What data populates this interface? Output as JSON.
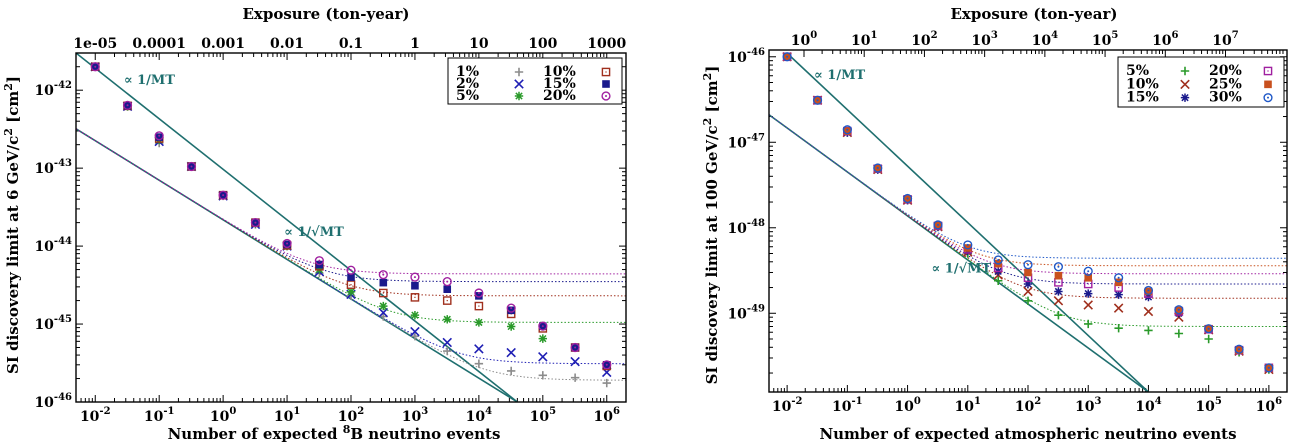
{
  "colors": {
    "1%": "#8c8c8c",
    "2%": "#1f1fb4",
    "5%": "#2a9a2a",
    "10%": "#a0301e",
    "15%": "#1a1a8c",
    "20%": "#a020a0",
    "25%": "#c8501e",
    "30%": "#1f58c8",
    "line": "#1f6f6f"
  },
  "chart_data": [
    {
      "type": "scatter",
      "title": "",
      "top_axis_label": "Exposure (ton-year)",
      "top_tick_labels": [
        "1e-05",
        "0.0001",
        "0.001",
        "0.01",
        "0.1",
        "1",
        "10",
        "100",
        "1000"
      ],
      "xlabel": "Number of expected 8B neutrino events",
      "xlabel_pre": "Number of expected ",
      "xlabel_sup": "8",
      "xlabel_post": "B neutrino events",
      "ylabel": "SI discovery limit at 6 GeV/c2 [cm2]",
      "ylabel_main": "SI discovery limit at 6 GeV/c",
      "ylabel_sup1": "2",
      "ylabel_mid": " [cm",
      "ylabel_sup2": "2",
      "ylabel_end": "]",
      "x_scale": "log",
      "y_scale": "log",
      "xlim": [
        0.005,
        2000000
      ],
      "ylim": [
        1e-46,
        3e-42
      ],
      "x_ticks": [
        0.01,
        0.1,
        1,
        10,
        100,
        1000,
        10000,
        100000,
        1000000
      ],
      "y_ticks": [
        1e-46,
        1e-45,
        1e-44,
        1e-43,
        1e-42
      ],
      "annotations": [
        {
          "text": "∝ 1/MT",
          "x": 0.028,
          "y": 1.2e-42
        },
        {
          "text": "∝ 1/√MT",
          "x": 9,
          "y": 1.35e-44
        }
      ],
      "legend_position": "top-right",
      "legend": [
        "1%",
        "2%",
        "5%",
        "10%",
        "15%",
        "20%"
      ],
      "x": [
        0.01,
        0.032,
        0.1,
        0.32,
        1,
        3.2,
        10,
        32,
        100,
        320,
        1000,
        3200,
        10000,
        32000,
        100000,
        320000,
        1000000
      ],
      "series": [
        {
          "name": "1%",
          "marker": "plus",
          "values": [
            2e-42,
            6.2e-43,
            2.1e-43,
            1.05e-43,
            4.4e-44,
            1.9e-44,
            1e-44,
            4.5e-45,
            2.3e-45,
            1.25e-45,
            7e-46,
            4.5e-46,
            3.1e-46,
            2.5e-46,
            2.2e-46,
            2.05e-46,
            1.75e-46
          ],
          "plateau": 1.9e-46
        },
        {
          "name": "2%",
          "marker": "x",
          "values": [
            2e-42,
            6.2e-43,
            2.2e-43,
            1.05e-43,
            4.4e-44,
            1.9e-44,
            1e-44,
            4.7e-45,
            2.4e-45,
            1.4e-45,
            8e-46,
            5.8e-46,
            4.8e-46,
            4.3e-46,
            3.8e-46,
            3.3e-46,
            2.4e-46
          ],
          "plateau": 3.1e-46
        },
        {
          "name": "5%",
          "marker": "star",
          "values": [
            2e-42,
            6.2e-43,
            2.3e-43,
            1.05e-43,
            4.5e-44,
            1.95e-44,
            1e-44,
            5e-45,
            2.6e-45,
            1.7e-45,
            1.3e-45,
            1.15e-45,
            1.05e-45,
            9.3e-46,
            6.5e-46,
            5e-46,
            3e-46
          ],
          "plateau": 1.05e-45
        },
        {
          "name": "10%",
          "marker": "square-open",
          "values": [
            2e-42,
            6.3e-43,
            2.4e-43,
            1.05e-43,
            4.5e-44,
            2e-44,
            1.02e-44,
            5.5e-45,
            3.2e-45,
            2.5e-45,
            2.2e-45,
            2e-45,
            1.7e-45,
            1.35e-45,
            8.8e-46,
            5e-46,
            2.9e-46
          ],
          "plateau": 2.3e-45
        },
        {
          "name": "15%",
          "marker": "square-filled",
          "values": [
            2e-42,
            6.3e-43,
            2.5e-43,
            1.05e-43,
            4.5e-44,
            2e-44,
            1.05e-44,
            5.8e-45,
            4e-45,
            3.4e-45,
            3.1e-45,
            2.8e-45,
            2.3e-45,
            1.5e-45,
            9.4e-46,
            5e-46,
            3e-46
          ],
          "plateau": 3.5e-45
        },
        {
          "name": "20%",
          "marker": "circle-dot",
          "values": [
            2e-42,
            6.4e-43,
            2.6e-43,
            1.05e-43,
            4.5e-44,
            2e-44,
            1.08e-44,
            6.5e-45,
            4.9e-45,
            4.3e-45,
            4e-45,
            3.5e-45,
            2.5e-45,
            1.6e-45,
            9.4e-46,
            5e-46,
            3e-46
          ],
          "plateau": 4.4e-45
        }
      ],
      "lines": [
        {
          "label": "1/MT",
          "points": [
            [
              0.005,
              3e-42
            ],
            [
              40000,
              1e-46
            ]
          ]
        },
        {
          "label": "1/sqrt(MT)",
          "points": [
            [
              0.005,
              3.2e-43
            ],
            [
              40000,
              1e-46
            ]
          ]
        }
      ]
    },
    {
      "type": "scatter",
      "title": "",
      "top_axis_label": "Exposure (ton-year)",
      "top_tick_labels": [
        "10",
        "10",
        "10",
        "10",
        "10",
        "10",
        "10",
        "10"
      ],
      "top_tick_sups": [
        "0",
        "1",
        "2",
        "3",
        "4",
        "5",
        "6",
        "7"
      ],
      "xlabel": "Number of expected atmospheric neutrino events",
      "ylabel": "SI discovery limit at 100 GeV/c2 [cm2]",
      "ylabel_main": "SI discovery limit at 100 GeV/c",
      "ylabel_sup1": "2",
      "ylabel_mid": " [cm",
      "ylabel_sup2": "2",
      "ylabel_end": "]",
      "x_scale": "log",
      "y_scale": "log",
      "xlim": [
        0.005,
        2000000
      ],
      "ylim": [
        1.2e-50,
        1.2e-46
      ],
      "x_ticks": [
        0.01,
        0.1,
        1,
        10,
        100,
        1000,
        10000,
        100000,
        1000000
      ],
      "y_ticks": [
        1e-49,
        1e-48,
        1e-47,
        1e-46
      ],
      "annotations": [
        {
          "text": "∝ 1/MT",
          "x": 0.028,
          "y": 5.5e-47
        },
        {
          "text": "∝ 1/√MT",
          "x": 2.5,
          "y": 3e-49
        }
      ],
      "legend_position": "top-right",
      "legend": [
        "5%",
        "10%",
        "15%",
        "20%",
        "25%",
        "30%"
      ],
      "x": [
        0.01,
        0.032,
        0.1,
        0.32,
        1,
        3.2,
        10,
        32,
        100,
        320,
        1000,
        3200,
        10000,
        32000,
        100000,
        320000,
        1000000
      ],
      "series": [
        {
          "name": "5%",
          "marker": "plus",
          "values": [
            1e-46,
            3.1e-47,
            1.3e-47,
            4.8e-48,
            2.1e-48,
            1.02e-48,
            5e-49,
            2.4e-49,
            1.4e-49,
            9.5e-50,
            7.5e-50,
            6.7e-50,
            6.3e-50,
            5.8e-50,
            5e-50,
            3.5e-50,
            2.2e-50
          ],
          "plateau": 7e-50
        },
        {
          "name": "10%",
          "marker": "x",
          "values": [
            1e-46,
            3.1e-47,
            1.3e-47,
            4.8e-48,
            2.1e-48,
            1.03e-48,
            5.2e-49,
            2.8e-49,
            1.8e-49,
            1.4e-49,
            1.25e-49,
            1.15e-49,
            1.05e-49,
            9e-50,
            6.4e-50,
            3.6e-50,
            2.2e-50
          ],
          "plateau": 1.5e-49
        },
        {
          "name": "15%",
          "marker": "star",
          "values": [
            1e-46,
            3.1e-47,
            1.3e-47,
            4.8e-48,
            2.1e-48,
            1.03e-48,
            5.4e-49,
            3.1e-49,
            2.2e-49,
            1.8e-49,
            1.7e-49,
            1.65e-49,
            1.55e-49,
            1e-49,
            6.5e-50,
            3.7e-50,
            2.3e-50
          ],
          "plateau": 2.2e-49
        },
        {
          "name": "20%",
          "marker": "square-open",
          "values": [
            1e-46,
            3.1e-47,
            1.35e-47,
            4.9e-48,
            2.15e-48,
            1.05e-48,
            5.6e-49,
            3.4e-49,
            2.6e-49,
            2.3e-49,
            2.2e-49,
            2e-49,
            1.7e-49,
            1.05e-49,
            6.5e-50,
            3.7e-50,
            2.3e-50
          ],
          "plateau": 2.9e-49
        },
        {
          "name": "25%",
          "marker": "square-filled",
          "values": [
            1e-46,
            3.1e-47,
            1.35e-47,
            4.9e-48,
            2.15e-48,
            1.06e-48,
            5.8e-49,
            3.8e-49,
            3e-49,
            2.75e-49,
            2.6e-49,
            2.3e-49,
            1.8e-49,
            1.08e-49,
            6.6e-50,
            3.7e-50,
            2.3e-50
          ],
          "plateau": 3.6e-49
        },
        {
          "name": "30%",
          "marker": "circle-dot",
          "values": [
            1e-46,
            3.1e-47,
            1.4e-47,
            5e-48,
            2.2e-48,
            1.08e-48,
            6.3e-49,
            4.2e-49,
            3.7e-49,
            3.5e-49,
            3.1e-49,
            2.6e-49,
            1.85e-49,
            1.1e-49,
            6.6e-50,
            3.8e-50,
            2.3e-50
          ],
          "plateau": 4.4e-49
        }
      ],
      "lines": [
        {
          "label": "1/MT",
          "points": [
            [
              0.01,
              1.1e-46
            ],
            [
              10000,
              1.2e-50
            ]
          ]
        },
        {
          "label": "1/sqrt(MT)",
          "points": [
            [
              0.005,
              2.1e-47
            ],
            [
              10000,
              1.2e-50
            ]
          ]
        }
      ]
    }
  ]
}
